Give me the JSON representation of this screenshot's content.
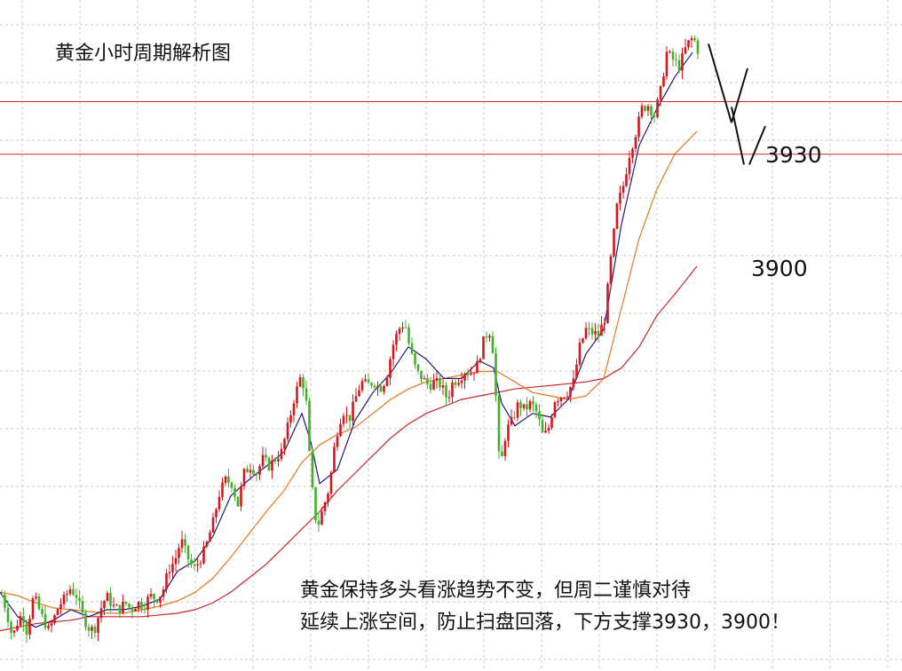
{
  "title": "黄金小时周期解析图",
  "levels": [
    {
      "value": 3930,
      "label": "3930"
    },
    {
      "value": 3900,
      "label": "3900"
    }
  ],
  "note": {
    "line1": "黄金保持多头看涨趋势不变，但周二谨慎对待",
    "line2": "延续上涨空间，防止扫盘回落，下方支撑3930，3900！"
  },
  "colors": {
    "up": "#d6161c",
    "down": "#43b02a",
    "ma_fast": "#1a1a7a",
    "ma_mid": "#e8761a",
    "ma_slow": "#c8242a",
    "level": "#d02a2a",
    "grid": "#c8c8c8"
  },
  "chart_data": {
    "type": "candlestick",
    "title": "黄金小时周期解析图",
    "ylim": [
      3605,
      3988
    ],
    "grid": true,
    "horizontal_lines": [
      3930,
      3900
    ],
    "close_path": [
      [
        0,
        3652
      ],
      [
        7,
        3640
      ],
      [
        14,
        3624
      ],
      [
        19,
        3632
      ],
      [
        25,
        3638
      ],
      [
        30,
        3628
      ],
      [
        38,
        3648
      ],
      [
        44,
        3640
      ],
      [
        50,
        3633
      ],
      [
        55,
        3628
      ],
      [
        60,
        3634
      ],
      [
        66,
        3642
      ],
      [
        72,
        3646
      ],
      [
        79,
        3652
      ],
      [
        86,
        3648
      ],
      [
        92,
        3638
      ],
      [
        99,
        3630
      ],
      [
        106,
        3628
      ],
      [
        113,
        3640
      ],
      [
        120,
        3648
      ],
      [
        127,
        3642
      ],
      [
        134,
        3640
      ],
      [
        141,
        3644
      ],
      [
        148,
        3640
      ],
      [
        155,
        3644
      ],
      [
        162,
        3642
      ],
      [
        169,
        3648
      ],
      [
        176,
        3646
      ],
      [
        183,
        3650
      ],
      [
        190,
        3663
      ],
      [
        197,
        3668
      ],
      [
        204,
        3680
      ],
      [
        211,
        3670
      ],
      [
        218,
        3663
      ],
      [
        225,
        3668
      ],
      [
        232,
        3676
      ],
      [
        240,
        3690
      ],
      [
        247,
        3706
      ],
      [
        254,
        3714
      ],
      [
        261,
        3712
      ],
      [
        268,
        3700
      ],
      [
        275,
        3718
      ],
      [
        282,
        3722
      ],
      [
        289,
        3718
      ],
      [
        296,
        3726
      ],
      [
        303,
        3722
      ],
      [
        310,
        3726
      ],
      [
        317,
        3730
      ],
      [
        324,
        3744
      ],
      [
        331,
        3760
      ],
      [
        338,
        3772
      ],
      [
        344,
        3766
      ],
      [
        350,
        3716
      ],
      [
        357,
        3686
      ],
      [
        364,
        3698
      ],
      [
        371,
        3710
      ],
      [
        378,
        3738
      ],
      [
        386,
        3754
      ],
      [
        393,
        3748
      ],
      [
        400,
        3760
      ],
      [
        407,
        3770
      ],
      [
        414,
        3768
      ],
      [
        421,
        3770
      ],
      [
        428,
        3766
      ],
      [
        435,
        3772
      ],
      [
        442,
        3790
      ],
      [
        449,
        3800
      ],
      [
        456,
        3804
      ],
      [
        462,
        3788
      ],
      [
        469,
        3776
      ],
      [
        476,
        3772
      ],
      [
        483,
        3768
      ],
      [
        490,
        3770
      ],
      [
        497,
        3768
      ],
      [
        504,
        3760
      ],
      [
        510,
        3770
      ],
      [
        517,
        3772
      ],
      [
        524,
        3776
      ],
      [
        531,
        3775
      ],
      [
        538,
        3780
      ],
      [
        545,
        3794
      ],
      [
        551,
        3800
      ],
      [
        556,
        3786
      ],
      [
        563,
        3718
      ],
      [
        570,
        3742
      ],
      [
        577,
        3748
      ],
      [
        584,
        3758
      ],
      [
        591,
        3754
      ],
      [
        598,
        3758
      ],
      [
        605,
        3752
      ],
      [
        612,
        3738
      ],
      [
        618,
        3744
      ],
      [
        625,
        3760
      ],
      [
        632,
        3762
      ],
      [
        639,
        3764
      ],
      [
        646,
        3770
      ],
      [
        653,
        3790
      ],
      [
        660,
        3800
      ],
      [
        667,
        3798
      ],
      [
        674,
        3797
      ],
      [
        681,
        3806
      ],
      [
        688,
        3840
      ],
      [
        695,
        3870
      ],
      [
        702,
        3882
      ],
      [
        709,
        3900
      ],
      [
        716,
        3912
      ],
      [
        723,
        3926
      ],
      [
        730,
        3928
      ],
      [
        737,
        3922
      ],
      [
        744,
        3936
      ],
      [
        751,
        3958
      ],
      [
        758,
        3954
      ],
      [
        765,
        3950
      ],
      [
        772,
        3960
      ],
      [
        778,
        3966
      ],
      [
        784,
        3964
      ],
      [
        788,
        3955
      ]
    ],
    "ma_fast": [
      [
        0,
        3650
      ],
      [
        20,
        3636
      ],
      [
        40,
        3630
      ],
      [
        60,
        3634
      ],
      [
        80,
        3640
      ],
      [
        100,
        3636
      ],
      [
        120,
        3640
      ],
      [
        140,
        3640
      ],
      [
        160,
        3642
      ],
      [
        180,
        3646
      ],
      [
        200,
        3662
      ],
      [
        220,
        3668
      ],
      [
        240,
        3682
      ],
      [
        260,
        3705
      ],
      [
        280,
        3714
      ],
      [
        300,
        3722
      ],
      [
        320,
        3730
      ],
      [
        340,
        3752
      ],
      [
        350,
        3736
      ],
      [
        360,
        3712
      ],
      [
        380,
        3720
      ],
      [
        400,
        3748
      ],
      [
        420,
        3764
      ],
      [
        440,
        3775
      ],
      [
        460,
        3790
      ],
      [
        480,
        3783
      ],
      [
        500,
        3772
      ],
      [
        520,
        3772
      ],
      [
        540,
        3782
      ],
      [
        556,
        3778
      ],
      [
        565,
        3758
      ],
      [
        580,
        3745
      ],
      [
        600,
        3752
      ],
      [
        620,
        3750
      ],
      [
        640,
        3760
      ],
      [
        660,
        3786
      ],
      [
        680,
        3800
      ],
      [
        700,
        3860
      ],
      [
        720,
        3905
      ],
      [
        740,
        3926
      ],
      [
        760,
        3944
      ],
      [
        780,
        3958
      ]
    ],
    "ma_mid": [
      [
        0,
        3650
      ],
      [
        20,
        3648
      ],
      [
        40,
        3644
      ],
      [
        60,
        3641
      ],
      [
        80,
        3640
      ],
      [
        100,
        3639
      ],
      [
        120,
        3638
      ],
      [
        140,
        3638
      ],
      [
        160,
        3640
      ],
      [
        180,
        3642
      ],
      [
        200,
        3645
      ],
      [
        220,
        3650
      ],
      [
        240,
        3658
      ],
      [
        260,
        3670
      ],
      [
        280,
        3683
      ],
      [
        300,
        3696
      ],
      [
        320,
        3708
      ],
      [
        340,
        3724
      ],
      [
        360,
        3734
      ],
      [
        380,
        3740
      ],
      [
        400,
        3744
      ],
      [
        420,
        3752
      ],
      [
        440,
        3760
      ],
      [
        460,
        3766
      ],
      [
        480,
        3770
      ],
      [
        500,
        3772
      ],
      [
        520,
        3774
      ],
      [
        540,
        3776
      ],
      [
        560,
        3776
      ],
      [
        580,
        3770
      ],
      [
        600,
        3764
      ],
      [
        620,
        3762
      ],
      [
        640,
        3760
      ],
      [
        660,
        3762
      ],
      [
        680,
        3772
      ],
      [
        700,
        3812
      ],
      [
        720,
        3852
      ],
      [
        740,
        3880
      ],
      [
        760,
        3900
      ],
      [
        785,
        3913
      ]
    ],
    "ma_slow": [
      [
        0,
        3628
      ],
      [
        20,
        3630
      ],
      [
        40,
        3632
      ],
      [
        60,
        3633
      ],
      [
        80,
        3634
      ],
      [
        100,
        3636
      ],
      [
        120,
        3636
      ],
      [
        140,
        3636
      ],
      [
        160,
        3636
      ],
      [
        180,
        3637
      ],
      [
        200,
        3638
      ],
      [
        220,
        3640
      ],
      [
        240,
        3644
      ],
      [
        260,
        3650
      ],
      [
        280,
        3658
      ],
      [
        300,
        3666
      ],
      [
        320,
        3676
      ],
      [
        340,
        3686
      ],
      [
        360,
        3696
      ],
      [
        380,
        3708
      ],
      [
        400,
        3718
      ],
      [
        420,
        3728
      ],
      [
        440,
        3738
      ],
      [
        460,
        3746
      ],
      [
        480,
        3752
      ],
      [
        500,
        3756
      ],
      [
        520,
        3760
      ],
      [
        540,
        3762
      ],
      [
        560,
        3764
      ],
      [
        580,
        3766
      ],
      [
        600,
        3767
      ],
      [
        620,
        3768
      ],
      [
        640,
        3769
      ],
      [
        660,
        3770
      ],
      [
        680,
        3772
      ],
      [
        700,
        3778
      ],
      [
        720,
        3790
      ],
      [
        740,
        3808
      ],
      [
        760,
        3820
      ],
      [
        785,
        3836
      ]
    ],
    "forecast": [
      [
        [
          798,
          3963
        ],
        [
          824,
          3918
        ]
      ],
      [
        [
          824,
          3918
        ],
        [
          842,
          3949
        ]
      ],
      [
        [
          824,
          3927
        ],
        [
          838,
          3894
        ]
      ],
      [
        [
          844,
          3894
        ],
        [
          862,
          3916
        ]
      ]
    ]
  }
}
